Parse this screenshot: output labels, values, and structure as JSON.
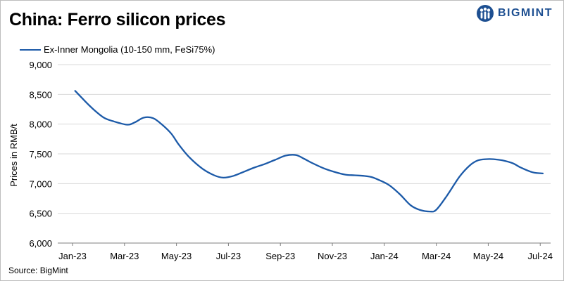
{
  "title": "China: Ferro silicon prices",
  "brand": {
    "name": "BIGMINT",
    "color": "#1d4f91"
  },
  "source": "Source:  BigMint",
  "chart_data": {
    "type": "line",
    "title": "China: Ferro silicon prices",
    "ylabel": "Prices in RMB/t",
    "xlabel": "",
    "ylim": [
      6000,
      9000
    ],
    "yticks": [
      6000,
      6500,
      7000,
      7500,
      8000,
      8500,
      9000
    ],
    "ytick_labels": [
      "6,000",
      "6,500",
      "7,000",
      "7,500",
      "8,000",
      "8,500",
      "9,000"
    ],
    "xtick_labels": [
      "Jan-23",
      "Mar-23",
      "May-23",
      "Jul-23",
      "Sep-23",
      "Nov-23",
      "Jan-24",
      "Mar-24",
      "May-24",
      "Jul-24"
    ],
    "x_unit": "month index (0 = Jan-23)",
    "grid": "horizontal",
    "legend_position": "top-left",
    "series": [
      {
        "name": "Ex-Inner Mongolia (10-150 mm, FeSi75%)",
        "color": "#1c5aa8",
        "x": [
          0.1,
          0.45,
          0.8,
          1.2,
          1.55,
          2.1,
          2.4,
          2.75,
          3.1,
          3.45,
          3.8,
          4.1,
          4.5,
          5.0,
          5.45,
          5.8,
          6.2,
          6.6,
          7.0,
          7.4,
          7.8,
          8.2,
          8.6,
          8.9,
          9.25,
          9.65,
          10.05,
          10.5,
          10.85,
          11.2,
          11.5,
          11.8,
          12.2,
          12.6,
          13.0,
          13.35,
          13.75,
          14.0,
          14.4,
          14.9,
          15.3,
          15.6,
          15.9,
          16.2,
          16.55,
          16.95,
          17.25,
          17.7,
          18.1
        ],
        "values": [
          8560,
          8400,
          8250,
          8110,
          8050,
          7990,
          8030,
          8110,
          8100,
          7990,
          7840,
          7650,
          7440,
          7250,
          7140,
          7100,
          7130,
          7200,
          7270,
          7330,
          7400,
          7470,
          7480,
          7420,
          7340,
          7260,
          7200,
          7150,
          7140,
          7130,
          7110,
          7060,
          6970,
          6820,
          6640,
          6560,
          6530,
          6560,
          6790,
          7120,
          7310,
          7390,
          7410,
          7410,
          7390,
          7340,
          7270,
          7190,
          7170
        ]
      }
    ]
  }
}
